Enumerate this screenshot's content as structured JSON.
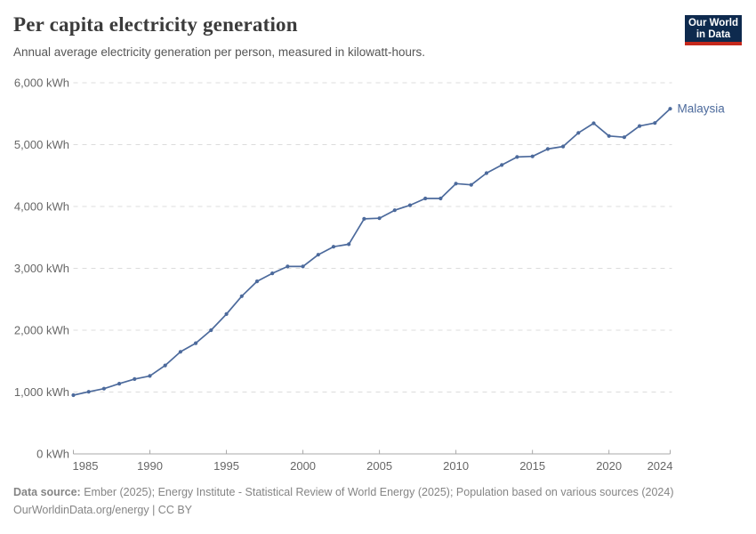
{
  "header": {
    "title": "Per capita electricity generation",
    "subtitle": "Annual average electricity generation per person, measured in kilowatt-hours.",
    "logo": {
      "line1": "Our World",
      "line2": "in Data"
    }
  },
  "chart_data": {
    "type": "line",
    "title": "Per capita electricity generation",
    "unit": "kWh",
    "xlim": [
      1985,
      2024
    ],
    "ylim": [
      0,
      6000
    ],
    "grid": "horizontal-dashed",
    "legend_position": "end-of-line-label",
    "x": [
      1985,
      1986,
      1987,
      1988,
      1989,
      1990,
      1991,
      1992,
      1993,
      1994,
      1995,
      1996,
      1997,
      1998,
      1999,
      2000,
      2001,
      2002,
      2003,
      2004,
      2005,
      2006,
      2007,
      2008,
      2009,
      2010,
      2011,
      2012,
      2013,
      2014,
      2015,
      2016,
      2017,
      2018,
      2019,
      2020,
      2021,
      2022,
      2023,
      2024
    ],
    "series": [
      {
        "name": "Malaysia",
        "color": "#4C6A9C",
        "values": [
          950,
          1005,
          1055,
          1135,
          1210,
          1260,
          1430,
          1650,
          1790,
          2000,
          2260,
          2550,
          2790,
          2920,
          3030,
          3030,
          3220,
          3350,
          3390,
          3800,
          3810,
          3940,
          4020,
          4130,
          4130,
          4370,
          4350,
          4540,
          4670,
          4800,
          4810,
          4930,
          4970,
          5190,
          5345,
          5140,
          5120,
          5300,
          5350,
          5580
        ]
      }
    ],
    "xticks": {
      "values": [
        1985,
        1990,
        1995,
        2000,
        2005,
        2010,
        2015,
        2020,
        2024
      ],
      "labels": [
        "1985",
        "1990",
        "1995",
        "2000",
        "2005",
        "2010",
        "2015",
        "2020",
        "2024"
      ]
    },
    "yticks": {
      "values": [
        0,
        1000,
        2000,
        3000,
        4000,
        5000,
        6000
      ],
      "labels": [
        "0 kWh",
        "1,000 kWh",
        "2,000 kWh",
        "3,000 kWh",
        "4,000 kWh",
        "5,000 kWh",
        "6,000 kWh"
      ]
    }
  },
  "footer": {
    "source_label": "Data source:",
    "source_text": " Ember (2025); Energy Institute - Statistical Review of World Energy (2025); Population based on various sources (2024)",
    "link_line": "OurWorldinData.org/energy | CC BY"
  },
  "colors": {
    "line": "#4C6A9C",
    "entity_label": "#4C6A9C",
    "gridline": "#dcdcdc",
    "axis": "#a8a8a8",
    "tick_label": "#676767",
    "title": "#3b3b3b",
    "subtitle": "#565656",
    "footer_text": "#858585",
    "logo_navy": "#0E2A4E",
    "logo_red": "#C5281C",
    "background": "#ffffff"
  }
}
